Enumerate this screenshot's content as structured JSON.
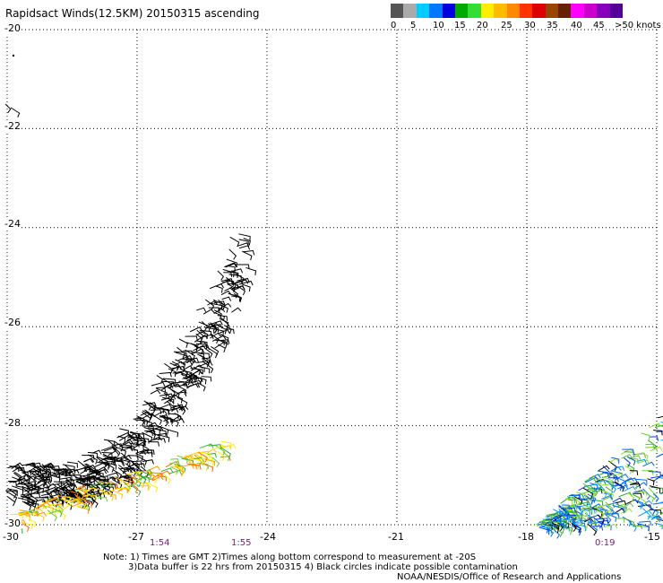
{
  "title": "Rapidsact Winds(12.5KM) 20150315 ascending",
  "legend": {
    "labels": [
      "0",
      "5",
      "10",
      "15",
      "20",
      "25",
      "30",
      "35",
      "40",
      "45",
      ">50 knots"
    ],
    "colors": [
      "#555555",
      "#aaaaaa",
      "#00ccff",
      "#0077ff",
      "#0000dd",
      "#00aa00",
      "#33dd33",
      "#ffee00",
      "#ffbb00",
      "#ff8800",
      "#ff3300",
      "#dd0000",
      "#994400",
      "#662200",
      "#ff00ff",
      "#cc00cc",
      "#8800bb",
      "#550099"
    ]
  },
  "axes": {
    "lat_labels": [
      "-20",
      "-22",
      "-24",
      "-26",
      "-28",
      "-30"
    ],
    "lon_labels": [
      "-30",
      "-27",
      "-24",
      "-21",
      "-18",
      "-15"
    ],
    "lat_range": [
      -30,
      -20
    ],
    "lon_range": [
      -30,
      -15
    ],
    "grid": "dotted"
  },
  "times": [
    "1:54",
    "1:55",
    "0:19"
  ],
  "notes": {
    "line1": "Note: 1) Times are GMT 2)Times along bottom correspond to measurement at -20S",
    "line2": "3)Data buffer is 22 hrs from 20150315 4) Black circles indicate possible contamination",
    "credit": "NOAA/NESDIS/Office of Research and Applications"
  }
}
